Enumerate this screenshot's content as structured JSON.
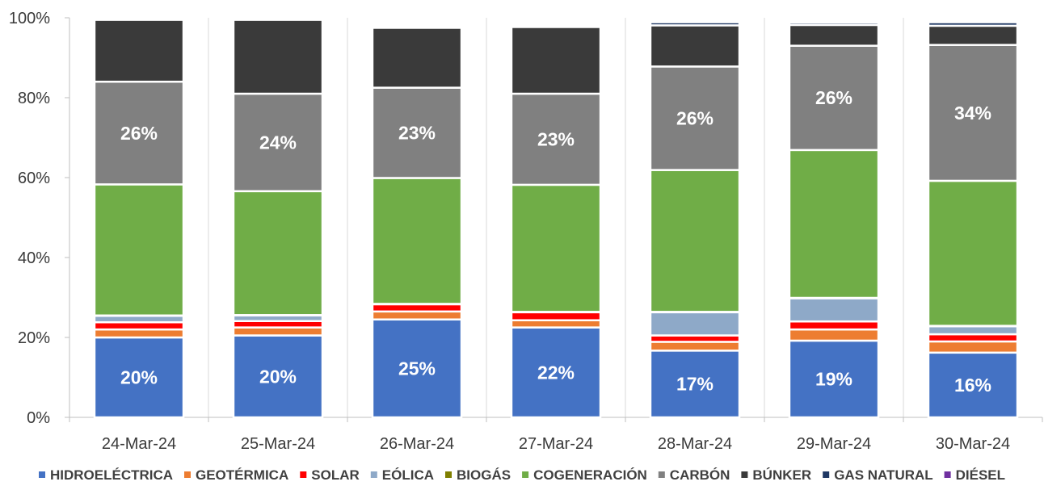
{
  "chart_data": {
    "type": "bar",
    "stacked": true,
    "title": "",
    "xlabel": "",
    "ylabel": "",
    "ylim": [
      0,
      100
    ],
    "y_ticks": [
      0,
      20,
      40,
      60,
      80,
      100
    ],
    "y_tick_labels": [
      "0%",
      "20%",
      "40%",
      "60%",
      "80%",
      "100%"
    ],
    "grid": "vertical",
    "legend_position": "bottom",
    "categories": [
      "24-Mar-24",
      "25-Mar-24",
      "26-Mar-24",
      "27-Mar-24",
      "28-Mar-24",
      "29-Mar-24",
      "30-Mar-24"
    ],
    "series": [
      {
        "name": "HIDROELÉCTRICA",
        "color": "#4472C4",
        "values": [
          20,
          20.5,
          24.5,
          22.5,
          16.7,
          19.2,
          16.2
        ],
        "labels": [
          "20%",
          "20%",
          "25%",
          "22%",
          "17%",
          "19%",
          "16%"
        ]
      },
      {
        "name": "GEOTÉRMICA",
        "color": "#ED7D31",
        "values": [
          2,
          2,
          2,
          1.8,
          2.2,
          2.8,
          2.8
        ],
        "labels": [
          "",
          "",
          "",
          "",
          "",
          "",
          ""
        ]
      },
      {
        "name": "SOLAR",
        "color": "#FF0000",
        "values": [
          1.8,
          1.6,
          1.8,
          2,
          1.6,
          2,
          1.8
        ],
        "labels": [
          "",
          "",
          "",
          "",
          "",
          "",
          ""
        ]
      },
      {
        "name": "EÓLICA",
        "color": "#8EA9C8",
        "values": [
          1.6,
          1.4,
          0,
          0,
          5.8,
          5.8,
          2
        ],
        "labels": [
          "",
          "",
          "",
          "",
          "",
          "",
          ""
        ]
      },
      {
        "name": "BIOGÁS",
        "color": "#7F7F00",
        "values": [
          0.1,
          0.1,
          0.1,
          0.1,
          0.1,
          0.1,
          0.1
        ],
        "labels": [
          "",
          "",
          "",
          "",
          "",
          "",
          ""
        ]
      },
      {
        "name": "COGENERACIÓN",
        "color": "#70AD47",
        "values": [
          32.8,
          31,
          31.5,
          31.8,
          35.5,
          37,
          36.3
        ],
        "labels": [
          "",
          "",
          "",
          "",
          "",
          "",
          ""
        ]
      },
      {
        "name": "CARBÓN",
        "color": "#808080",
        "values": [
          25.7,
          24.4,
          22.6,
          22.8,
          25.9,
          26.1,
          34
        ],
        "labels": [
          "26%",
          "24%",
          "23%",
          "23%",
          "26%",
          "26%",
          "34%"
        ]
      },
      {
        "name": "BÚNKER",
        "color": "#3A3A3A",
        "values": [
          15.5,
          18.5,
          15,
          16.7,
          10.3,
          5.2,
          4.8
        ],
        "labels": [
          "",
          "",
          "",
          "",
          "",
          "",
          ""
        ]
      },
      {
        "name": "GAS NATURAL",
        "color": "#1F3864",
        "values": [
          0,
          0,
          0,
          0.3,
          0.8,
          0.6,
          0.9
        ],
        "labels": [
          "",
          "",
          "",
          "",
          "",
          "",
          ""
        ]
      },
      {
        "name": "DIÉSEL",
        "color": "#7030A0",
        "values": [
          0.1,
          0.1,
          0.1,
          0.1,
          0.1,
          0.1,
          0.1
        ],
        "labels": [
          "",
          "",
          "",
          "",
          "",
          "",
          ""
        ]
      }
    ]
  }
}
